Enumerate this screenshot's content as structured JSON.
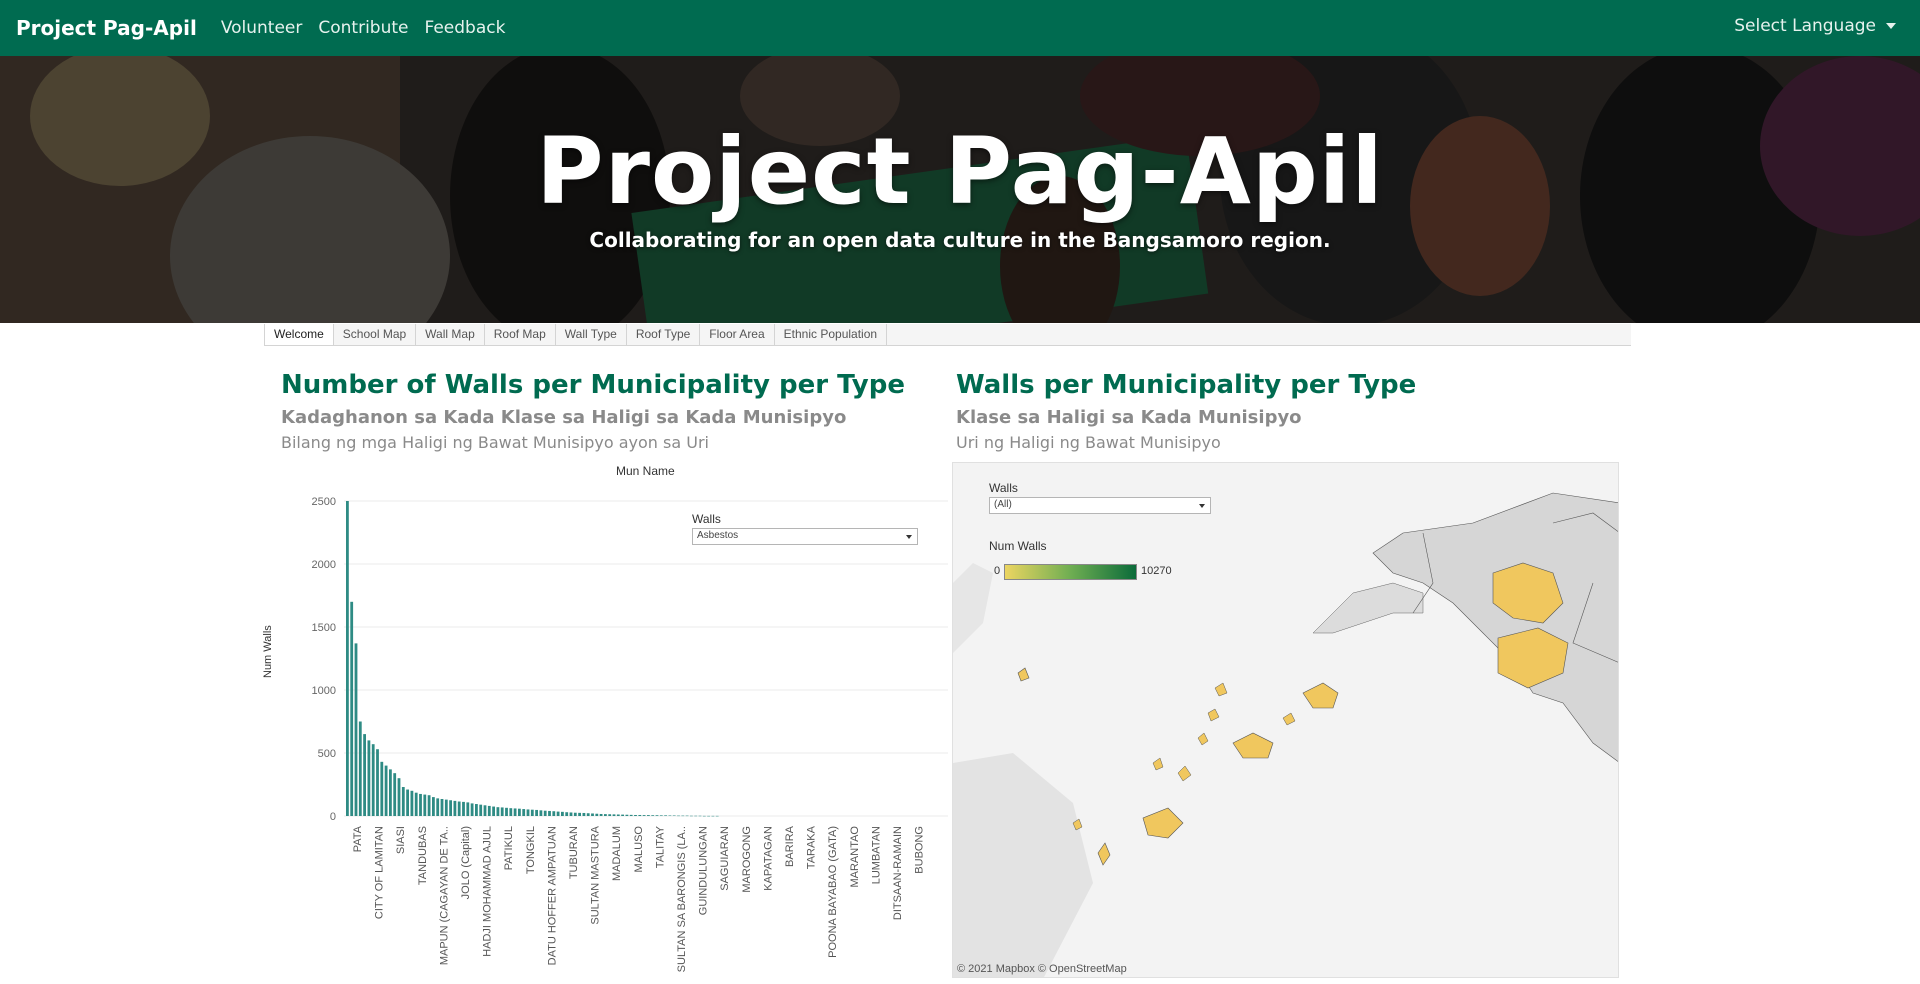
{
  "navbar": {
    "brand": "Project Pag-Apil",
    "links": [
      "Volunteer",
      "Contribute",
      "Feedback"
    ],
    "language": "Select Language"
  },
  "hero": {
    "title": "Project Pag-Apil",
    "subtitle": "Collaborating for an open data culture in the Bangsamoro region."
  },
  "tabs": [
    "Welcome",
    "School Map",
    "Wall Map",
    "Roof Map",
    "Wall Type",
    "Roof Type",
    "Floor Area",
    "Ethnic Population"
  ],
  "left": {
    "title": "Number of Walls per Municipality per Type",
    "sub1": "Kadaghanon sa Kada Klase sa Haligi sa Kada Munisipyo",
    "sub2": "Bilang ng mga Haligi ng Bawat Munisipyo ayon sa Uri"
  },
  "right": {
    "title": "Walls per Municipality per Type",
    "sub1": "Klase sa Haligi sa Kada Munisipyo",
    "sub2": "Uri ng Haligi ng Bawat Munisipyo"
  },
  "chart_filter": {
    "label": "Walls",
    "value": "Asbestos"
  },
  "map_panel": {
    "filter_label": "Walls",
    "filter_value": "(All)",
    "legend_title": "Num Walls",
    "legend_min": "0",
    "legend_max": "10270",
    "attribution": "© 2021 Mapbox  © OpenStreetMap",
    "colors": {
      "low": "#ecd561",
      "mid": "#6fae52",
      "high": "#0b6b3a",
      "region_fill": "#f0c75e"
    }
  },
  "chart_data": {
    "type": "bar",
    "header": "Mun Name",
    "ylabel": "Num Walls",
    "ylim": [
      0,
      2500
    ],
    "yticks": [
      0,
      500,
      1000,
      1500,
      2000,
      2500
    ],
    "color": "#2e8b84",
    "tick_labels": [
      "PATA",
      "CITY OF LAMITAN",
      "SIASI",
      "TANDUBAS",
      "MAPUN (CAGAYAN DE TA..",
      "JOLO (Capital)",
      "HADJI MOHAMMAD AJUL",
      "PATIKUL",
      "TONGKIL",
      "DATU HOFFER AMPATUAN",
      "TUBURAN",
      "SULTAN MASTURA",
      "MADALUM",
      "MALUSO",
      "TALITAY",
      "SULTAN SA BARONGIS (LA..",
      "GUINDULUNGAN",
      "SAGUIARAN",
      "MAROGONG",
      "KAPATAGAN",
      "BARIRA",
      "TARAKA",
      "POONA BAYABAO (GATA)",
      "MARANTAO",
      "LUMBATAN",
      "DITSAAN-RAMAIN",
      "BUBONG"
    ],
    "values": [
      2500,
      1700,
      1370,
      750,
      650,
      600,
      570,
      530,
      430,
      400,
      370,
      340,
      300,
      230,
      210,
      200,
      185,
      175,
      170,
      165,
      150,
      140,
      135,
      130,
      125,
      120,
      115,
      112,
      108,
      100,
      95,
      90,
      85,
      80,
      75,
      70,
      68,
      65,
      62,
      60,
      58,
      55,
      52,
      50,
      48,
      45,
      42,
      40,
      38,
      35,
      33,
      30,
      28,
      26,
      25,
      24,
      22,
      20,
      18,
      16,
      15,
      14,
      13,
      12,
      11,
      10,
      9,
      8,
      8,
      7,
      7,
      6,
      6,
      5,
      5,
      4,
      4,
      3,
      3,
      3,
      2,
      2,
      2,
      1,
      1,
      1,
      1
    ]
  }
}
